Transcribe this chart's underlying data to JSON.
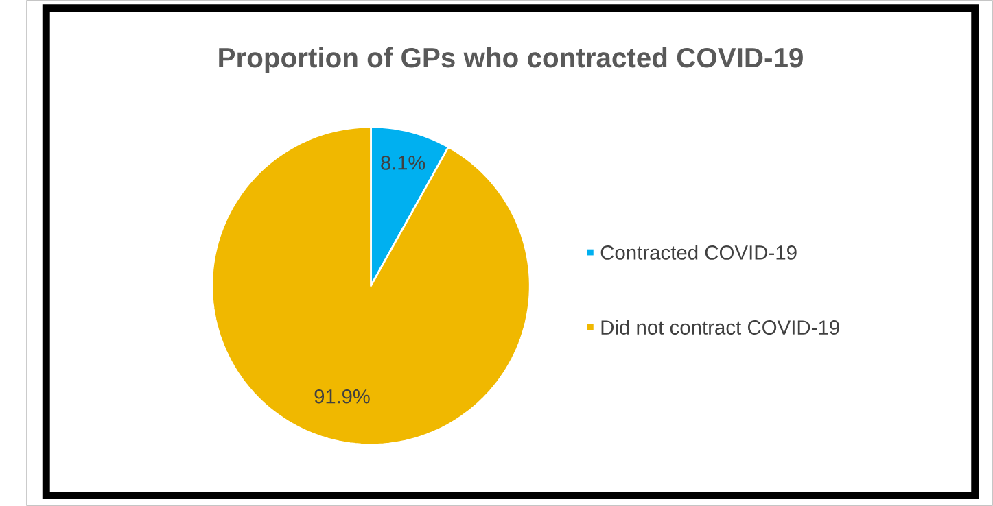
{
  "chart_data": {
    "type": "pie",
    "title": "Proportion of GPs who contracted COVID-19",
    "categories": [
      "Contracted COVID-19",
      "Did not contract COVID-19"
    ],
    "values": [
      8.1,
      91.9
    ],
    "colors": [
      "#00b0f0",
      "#f0b800"
    ],
    "value_labels": [
      "8.1%",
      "91.9%"
    ],
    "legend": "right"
  }
}
